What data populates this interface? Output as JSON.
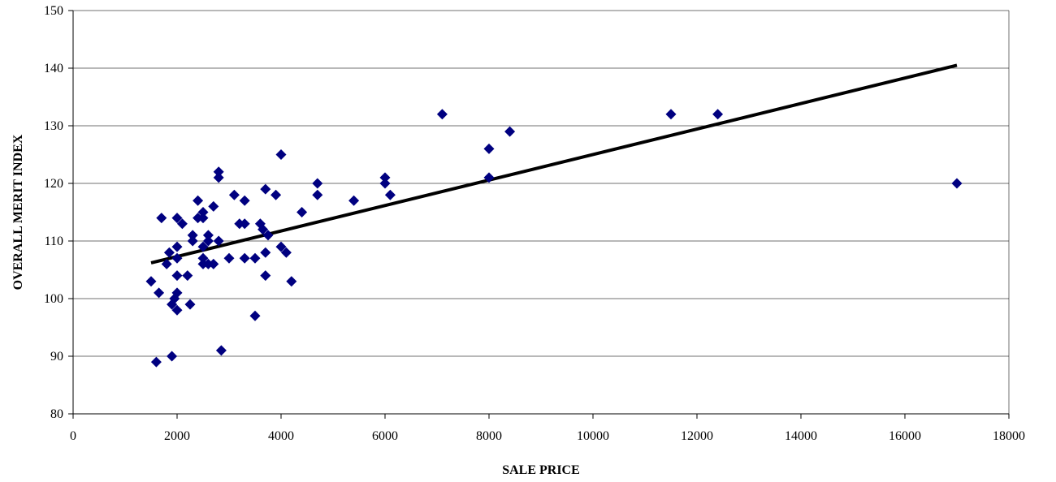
{
  "chart_data": {
    "type": "scatter",
    "title": "",
    "xlabel": "SALE PRICE",
    "ylabel": "OVERALL MERIT INDEX",
    "xlim": [
      0,
      18000
    ],
    "ylim": [
      80,
      150
    ],
    "x_ticks": [
      "0",
      "2000",
      "4000",
      "6000",
      "8000",
      "10000",
      "12000",
      "14000",
      "16000",
      "18000"
    ],
    "y_ticks": [
      "80",
      "90",
      "100",
      "110",
      "120",
      "130",
      "140",
      "150"
    ],
    "grid": "horizontal",
    "marker_color": "#000080",
    "series": [
      {
        "points": [
          [
            1500,
            103
          ],
          [
            1600,
            89
          ],
          [
            1650,
            101
          ],
          [
            1700,
            114
          ],
          [
            1800,
            106
          ],
          [
            1850,
            108
          ],
          [
            1900,
            99
          ],
          [
            1900,
            90
          ],
          [
            1950,
            100
          ],
          [
            2000,
            98
          ],
          [
            2000,
            101
          ],
          [
            2000,
            104
          ],
          [
            2000,
            107
          ],
          [
            2000,
            109
          ],
          [
            2000,
            114
          ],
          [
            2100,
            113
          ],
          [
            2200,
            104
          ],
          [
            2250,
            99
          ],
          [
            2300,
            110
          ],
          [
            2300,
            111
          ],
          [
            2400,
            117
          ],
          [
            2400,
            114
          ],
          [
            2500,
            106
          ],
          [
            2500,
            107
          ],
          [
            2500,
            109
          ],
          [
            2500,
            114
          ],
          [
            2500,
            115
          ],
          [
            2600,
            106
          ],
          [
            2600,
            110
          ],
          [
            2600,
            111
          ],
          [
            2700,
            106
          ],
          [
            2700,
            116
          ],
          [
            2800,
            110
          ],
          [
            2800,
            121
          ],
          [
            2800,
            122
          ],
          [
            2850,
            91
          ],
          [
            3000,
            107
          ],
          [
            3100,
            118
          ],
          [
            3200,
            113
          ],
          [
            3300,
            107
          ],
          [
            3300,
            113
          ],
          [
            3300,
            117
          ],
          [
            3500,
            97
          ],
          [
            3500,
            107
          ],
          [
            3600,
            113
          ],
          [
            3650,
            112
          ],
          [
            3700,
            104
          ],
          [
            3700,
            108
          ],
          [
            3700,
            119
          ],
          [
            3750,
            111
          ],
          [
            3900,
            118
          ],
          [
            4000,
            109
          ],
          [
            4000,
            125
          ],
          [
            4100,
            108
          ],
          [
            4200,
            103
          ],
          [
            4400,
            115
          ],
          [
            4700,
            118
          ],
          [
            4700,
            120
          ],
          [
            5400,
            117
          ],
          [
            6000,
            120
          ],
          [
            6000,
            121
          ],
          [
            6100,
            118
          ],
          [
            7100,
            132
          ],
          [
            8000,
            121
          ],
          [
            8000,
            126
          ],
          [
            8400,
            129
          ],
          [
            11500,
            132
          ],
          [
            12400,
            132
          ],
          [
            17000,
            120
          ]
        ]
      }
    ],
    "trendline": {
      "x": [
        1500,
        17000
      ],
      "y": [
        106.2,
        140.5
      ]
    }
  }
}
